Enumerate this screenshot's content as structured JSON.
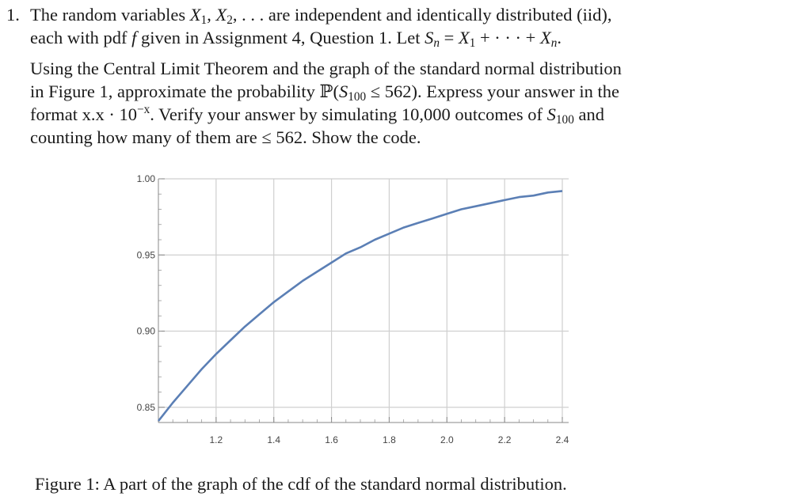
{
  "problem": {
    "number": "1.",
    "line1": {
      "t1": "The random variables ",
      "x1": "X",
      "x1_sub": "1",
      "comma": ", ",
      "x2": "X",
      "x2_sub": "2",
      "t2": ", . . . are independent and identically distributed (iid),"
    },
    "line2": {
      "t1": "each with pdf ",
      "f": "f",
      "t2": " given in Assignment 4, Question 1. Let ",
      "s": "S",
      "s_sub": "n",
      "t3": " = ",
      "x": "X",
      "x_sub": "1",
      "t4": " + · · · + ",
      "xn": "X",
      "xn_sub": "n",
      "t5": "."
    },
    "line3": "Using the Central Limit Theorem and the graph of the standard normal distribution",
    "line4": {
      "t1": "in Figure 1, approximate the probability ℙ(",
      "s": "S",
      "s_sub": "100",
      "t2": " ≤ 562). Express your answer in the"
    },
    "line5": {
      "t1": "format x.x · 10",
      "exp": "−x",
      "t2": ".  Verify your answer by simulating 10,000 outcomes of ",
      "s": "S",
      "s_sub": "100",
      "t3": " and"
    },
    "line6": "counting how many of them are ≤ 562. Show the code."
  },
  "chart_data": {
    "type": "line",
    "title": "",
    "xlabel": "",
    "ylabel": "",
    "xlim": [
      1.0,
      2.4
    ],
    "ylim": [
      0.84,
      1.0
    ],
    "x_ticks": [
      "1.2",
      "1.4",
      "1.6",
      "1.8",
      "2.0",
      "2.2",
      "2.4"
    ],
    "y_ticks": [
      "1.00",
      "0.95",
      "0.90",
      "0.85"
    ],
    "grid": true,
    "series": [
      {
        "x": [
          1.0,
          1.05,
          1.1,
          1.15,
          1.2,
          1.25,
          1.3,
          1.35,
          1.4,
          1.45,
          1.5,
          1.55,
          1.6,
          1.65,
          1.7,
          1.75,
          1.8,
          1.85,
          1.9,
          1.95,
          2.0,
          2.05,
          2.1,
          2.15,
          2.2,
          2.25,
          2.3,
          2.35,
          2.4
        ],
        "values": [
          0.841,
          0.853,
          0.864,
          0.875,
          0.885,
          0.894,
          0.903,
          0.911,
          0.919,
          0.926,
          0.933,
          0.939,
          0.945,
          0.951,
          0.955,
          0.96,
          0.964,
          0.968,
          0.971,
          0.974,
          0.977,
          0.98,
          0.982,
          0.984,
          0.986,
          0.988,
          0.989,
          0.991,
          0.992
        ]
      }
    ],
    "line_color": "#5b7fb5"
  },
  "caption": "Figure 1:  A part of the graph of the cdf of the standard normal distribution."
}
